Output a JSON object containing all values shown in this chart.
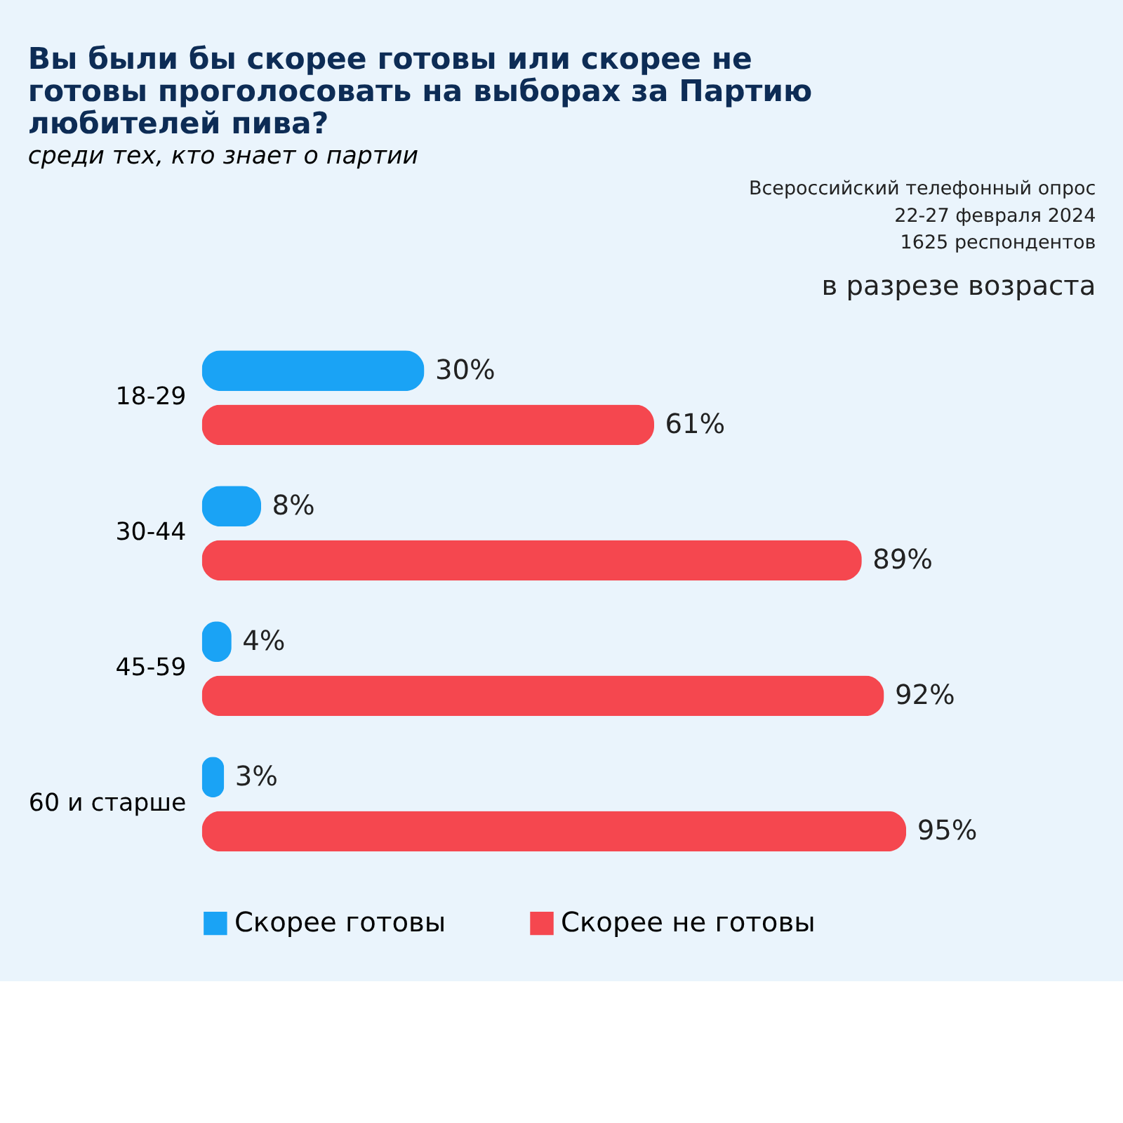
{
  "chart_data": {
    "type": "bar",
    "orientation": "horizontal",
    "title": "Вы были бы скорее готовы или скорее не готовы проголосовать на выборах за Партию любителей пива?",
    "subtitle": "среди тех, кто знает о партии",
    "annotations": [
      "Всероссийский телефонный опрос",
      "22-27 февраля 2024",
      "1625 респондентов",
      "в разрезе возраста"
    ],
    "categories": [
      "18-29",
      "30-44",
      "45-59",
      "60 и старше"
    ],
    "series": [
      {
        "name": "Скорее готовы",
        "color": "#1aa3f5",
        "values": [
          30,
          8,
          4,
          3
        ],
        "value_labels": [
          "30%",
          "8%",
          "4%",
          "3%"
        ]
      },
      {
        "name": "Скорее не готовы",
        "color": "#f5474f",
        "values": [
          61,
          89,
          92,
          95
        ],
        "value_labels": [
          "61%",
          "89%",
          "92%",
          "95%"
        ]
      }
    ],
    "grid": false,
    "legend": "bottom"
  }
}
